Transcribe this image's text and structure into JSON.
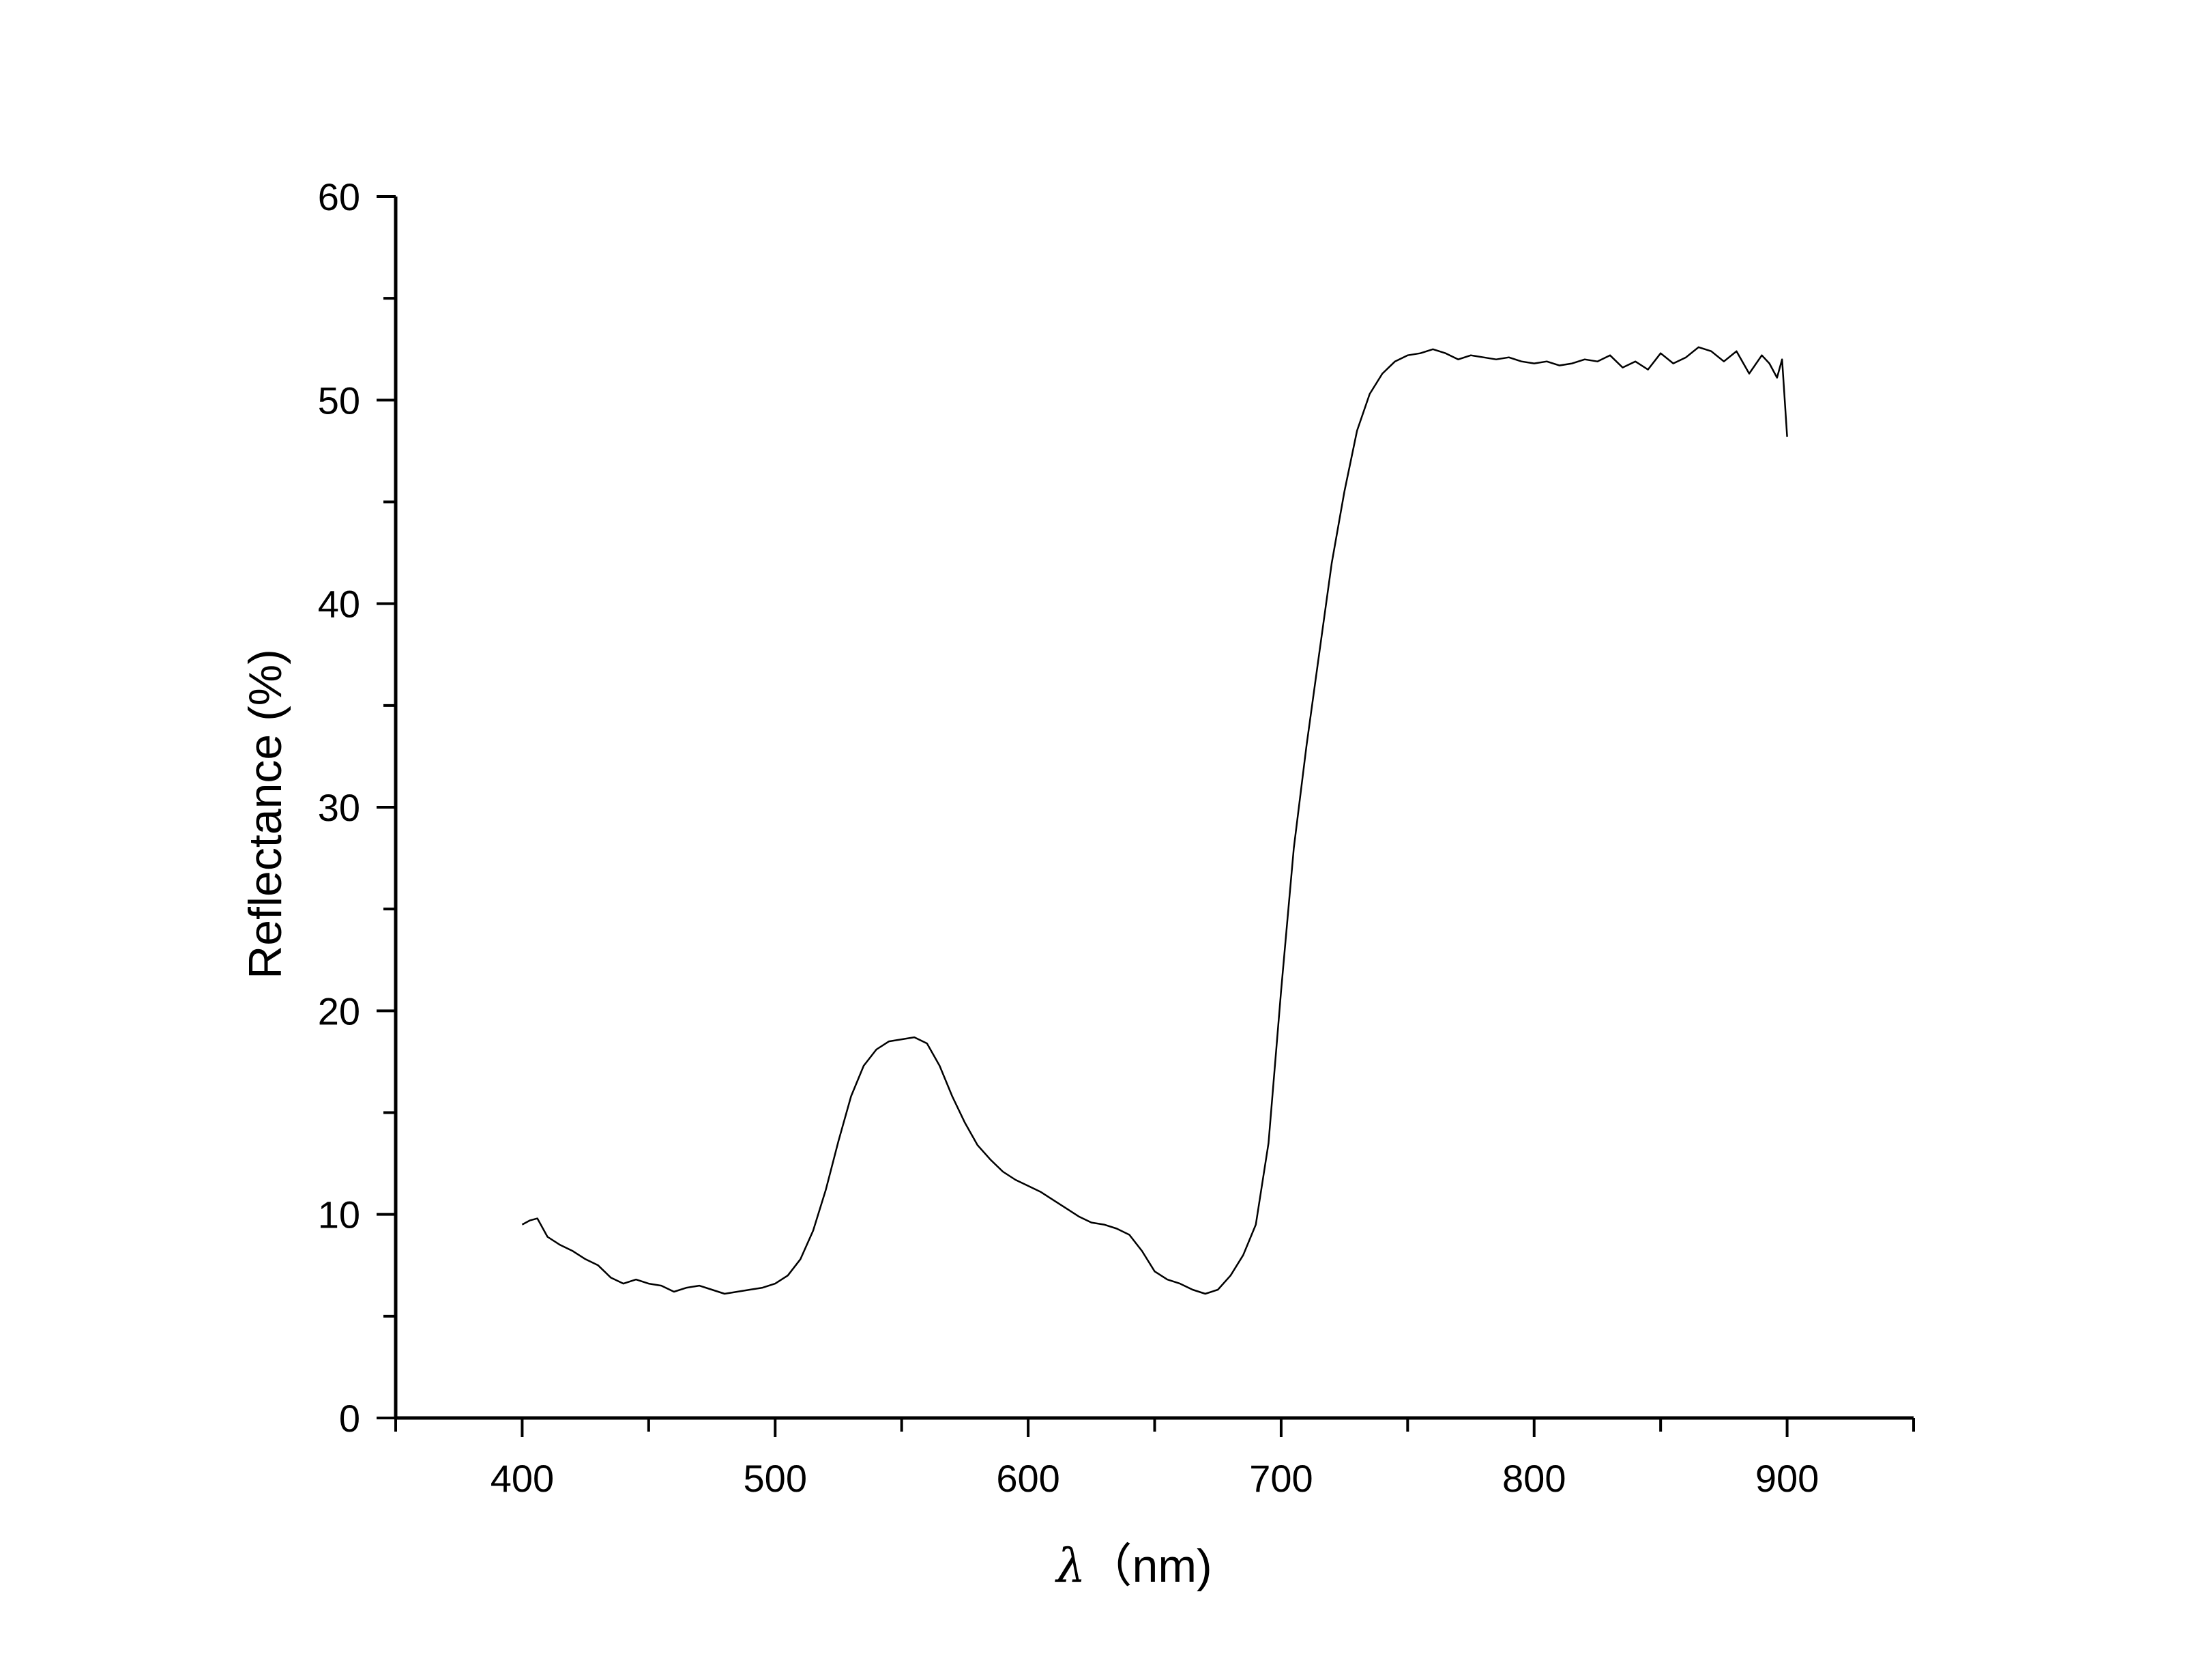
{
  "chart_data": {
    "type": "line",
    "title": "",
    "xlabel": "λ（nm)",
    "ylabel": "Reflectance (%)",
    "xlim": [
      350,
      950
    ],
    "ylim": [
      0,
      60
    ],
    "x_ticks": [
      400,
      500,
      600,
      700,
      800,
      900
    ],
    "y_ticks": [
      0,
      10,
      20,
      30,
      40,
      50,
      60
    ],
    "grid": false,
    "legend": "none",
    "line_color": "#000000",
    "series": [
      {
        "x": [
          400,
          403,
          406,
          410,
          415,
          420,
          425,
          430,
          435,
          440,
          445,
          450,
          455,
          460,
          465,
          470,
          475,
          480,
          485,
          490,
          495,
          500,
          505,
          510,
          515,
          520,
          525,
          530,
          535,
          540,
          545,
          550,
          555,
          560,
          565,
          570,
          575,
          580,
          585,
          590,
          595,
          600,
          605,
          610,
          615,
          620,
          625,
          630,
          635,
          640,
          645,
          650,
          655,
          660,
          665,
          670,
          675,
          680,
          685,
          690,
          695,
          700,
          705,
          710,
          715,
          720,
          725,
          730,
          735,
          740,
          745,
          750,
          755,
          760,
          765,
          770,
          775,
          780,
          785,
          790,
          795,
          800,
          805,
          810,
          815,
          820,
          825,
          830,
          835,
          840,
          845,
          850,
          855,
          860,
          865,
          870,
          875,
          880,
          885,
          890,
          893,
          896,
          898,
          900
        ],
        "y": [
          9.5,
          9.7,
          9.8,
          8.9,
          8.5,
          8.2,
          7.8,
          7.5,
          6.9,
          6.6,
          6.8,
          6.6,
          6.5,
          6.2,
          6.4,
          6.5,
          6.3,
          6.1,
          6.2,
          6.3,
          6.4,
          6.6,
          7.0,
          7.8,
          9.2,
          11.2,
          13.6,
          15.8,
          17.3,
          18.1,
          18.5,
          18.6,
          18.7,
          18.4,
          17.3,
          15.8,
          14.5,
          13.4,
          12.7,
          12.1,
          11.7,
          11.4,
          11.1,
          10.7,
          10.3,
          9.9,
          9.6,
          9.5,
          9.3,
          9.0,
          8.2,
          7.2,
          6.8,
          6.6,
          6.3,
          6.1,
          6.3,
          7.0,
          8.0,
          9.5,
          13.5,
          21.0,
          28.0,
          33.0,
          37.5,
          42.0,
          45.5,
          48.5,
          50.3,
          51.3,
          51.9,
          52.2,
          52.3,
          52.5,
          52.3,
          52.0,
          52.2,
          52.1,
          52.0,
          52.1,
          51.9,
          51.8,
          51.9,
          51.7,
          51.8,
          52.0,
          51.9,
          52.2,
          51.6,
          51.9,
          51.5,
          52.3,
          51.8,
          52.1,
          52.6,
          52.4,
          51.9,
          52.4,
          51.3,
          52.2,
          51.8,
          51.1,
          52.0,
          48.2
        ]
      }
    ]
  }
}
